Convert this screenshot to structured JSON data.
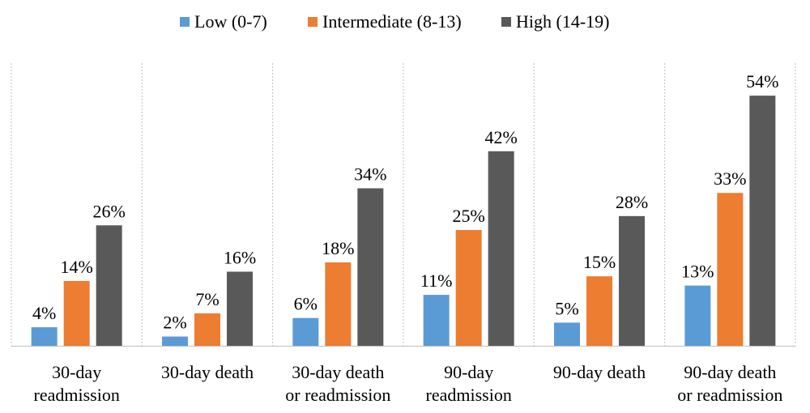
{
  "chart_data": {
    "type": "bar",
    "title": "",
    "xlabel": "",
    "ylabel": "",
    "ylim": [
      0,
      60
    ],
    "grid": false,
    "legend_position": "top",
    "value_suffix": "%",
    "categories": [
      [
        "30-day",
        "readmission"
      ],
      [
        "30-day death"
      ],
      [
        "30-day death",
        "or readmission"
      ],
      [
        "90-day",
        "readmission"
      ],
      [
        "90-day death"
      ],
      [
        "90-day death",
        "or readmission"
      ]
    ],
    "series": [
      {
        "name": "Low (0-7)",
        "color": "#5b9bd5",
        "values": [
          4,
          2,
          6,
          11,
          5,
          13
        ]
      },
      {
        "name": "Intermediate (8-13)",
        "color": "#ed7d31",
        "values": [
          14,
          7,
          18,
          25,
          15,
          33
        ]
      },
      {
        "name": "High (14-19)",
        "color": "#595959",
        "values": [
          26,
          16,
          34,
          42,
          28,
          54
        ]
      }
    ]
  }
}
